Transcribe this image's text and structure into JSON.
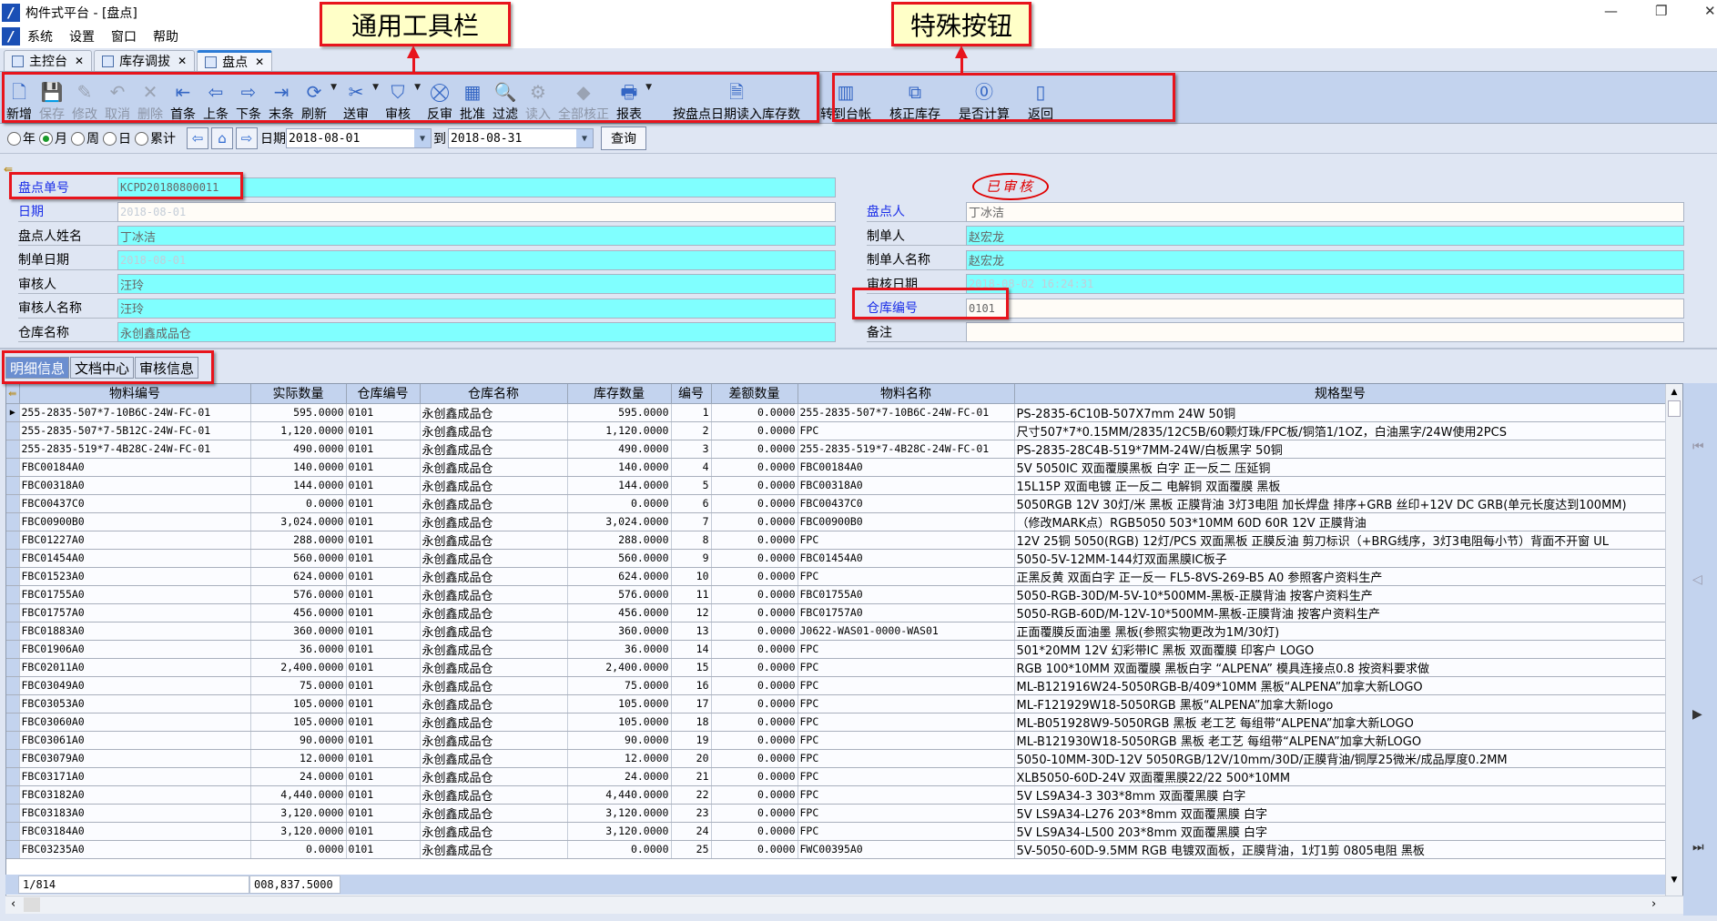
{
  "window": {
    "title": "构件式平台 - [盘点]",
    "minimize": "—",
    "restore": "❐",
    "close": "✕"
  },
  "menu": [
    "系统",
    "设置",
    "窗口",
    "帮助"
  ],
  "doc_tabs": [
    {
      "label": "主控台",
      "active": false
    },
    {
      "label": "库存调拔",
      "active": false
    },
    {
      "label": "盘点",
      "active": true
    }
  ],
  "annotations": {
    "general_toolbar": "通用工具栏",
    "special_buttons": "特殊按钮"
  },
  "toolbar": {
    "general": [
      {
        "label": "新增",
        "icon": "new-doc-icon",
        "glyph": "🗋",
        "disabled": false
      },
      {
        "label": "保存",
        "icon": "save-icon",
        "glyph": "💾",
        "disabled": true
      },
      {
        "label": "修改",
        "icon": "edit-icon",
        "glyph": "✎",
        "disabled": true
      },
      {
        "label": "取消",
        "icon": "undo-icon",
        "glyph": "↶",
        "disabled": true
      },
      {
        "label": "删除",
        "icon": "delete-icon",
        "glyph": "✕",
        "disabled": true
      },
      {
        "label": "首条",
        "icon": "first-record-icon",
        "glyph": "⇤",
        "disabled": false
      },
      {
        "label": "上条",
        "icon": "prev-record-icon",
        "glyph": "⇦",
        "disabled": false
      },
      {
        "label": "下条",
        "icon": "next-record-icon",
        "glyph": "⇨",
        "disabled": false
      },
      {
        "label": "末条",
        "icon": "last-record-icon",
        "glyph": "⇥",
        "disabled": false
      },
      {
        "label": "刷新",
        "icon": "refresh-icon",
        "glyph": "⟳",
        "disabled": false,
        "dropdown": true
      },
      {
        "label": "送审",
        "icon": "submit-review-icon",
        "glyph": "✂",
        "disabled": false,
        "dropdown": true
      },
      {
        "label": "审核",
        "icon": "audit-icon",
        "glyph": "⛉",
        "disabled": false,
        "dropdown": true
      },
      {
        "label": "反审",
        "icon": "unaudit-icon",
        "glyph": "⛒",
        "disabled": false
      },
      {
        "label": "批准",
        "icon": "approve-icon",
        "glyph": "▦",
        "disabled": false
      },
      {
        "label": "过滤",
        "icon": "filter-icon",
        "glyph": "🔍",
        "disabled": false
      },
      {
        "label": "读入",
        "icon": "read-in-icon",
        "glyph": "⚙",
        "disabled": true
      },
      {
        "label": "全部核正",
        "icon": "verify-all-icon",
        "glyph": "◆",
        "disabled": true
      },
      {
        "label": "报表",
        "icon": "report-icon",
        "glyph": "🖶",
        "disabled": false,
        "dropdown": true
      }
    ],
    "special": [
      {
        "label": "按盘点日期读入库存数",
        "icon": "read-stock-icon",
        "glyph": "🗎"
      },
      {
        "label": "转到台帐",
        "icon": "ledger-icon",
        "glyph": "▥"
      },
      {
        "label": "核正库存",
        "icon": "verify-stock-icon",
        "glyph": "⧉"
      },
      {
        "label": "是否计算",
        "icon": "calculate-icon",
        "glyph": "⓪"
      }
    ],
    "back": {
      "label": "返回",
      "icon": "back-icon",
      "glyph": "▯"
    }
  },
  "period": {
    "options": [
      {
        "label": "年",
        "selected": false
      },
      {
        "label": "月",
        "selected": true
      },
      {
        "label": "周",
        "selected": false
      },
      {
        "label": "日",
        "selected": false
      },
      {
        "label": "累计",
        "selected": false
      }
    ],
    "date_label": "日期",
    "date_from": "2018-08-01",
    "to_label": "到",
    "date_to": "2018-08-31",
    "query": "查询"
  },
  "form": {
    "stamp": "已审核",
    "left": [
      {
        "label": "盘点单号",
        "value": "KCPD20180800011",
        "blue": true,
        "style": "cyan mono"
      },
      {
        "label": "日期",
        "value": "2018-08-01",
        "blue": true,
        "style": "white faint mono"
      },
      {
        "label": "盘点人姓名",
        "value": "丁冰洁",
        "blue": false,
        "style": "cyan"
      },
      {
        "label": "制单日期",
        "value": "2018-08-01",
        "blue": false,
        "style": "cyan faint mono"
      },
      {
        "label": "审核人",
        "value": "汪玲",
        "blue": false,
        "style": "cyan"
      },
      {
        "label": "审核人名称",
        "value": "汪玲",
        "blue": false,
        "style": "cyan"
      },
      {
        "label": "仓库名称",
        "value": "永创鑫成品仓",
        "blue": false,
        "style": "cyan"
      }
    ],
    "right": [
      {
        "label": "盘点人",
        "value": "丁冰洁",
        "blue": true,
        "style": "white"
      },
      {
        "label": "制单人",
        "value": "赵宏龙",
        "blue": false,
        "style": "cyan"
      },
      {
        "label": "制单人名称",
        "value": "赵宏龙",
        "blue": false,
        "style": "cyan"
      },
      {
        "label": "审核日期",
        "value": "2018-08-02 16:24:31",
        "blue": false,
        "style": "cyan faint mono"
      },
      {
        "label": "仓库编号",
        "value": "0101",
        "blue": true,
        "style": "white mono"
      },
      {
        "label": "备注",
        "value": "",
        "blue": false,
        "style": "white"
      }
    ]
  },
  "detail_tabs": [
    {
      "label": "明细信息",
      "active": true
    },
    {
      "label": "文档中心",
      "active": false
    },
    {
      "label": "审核信息",
      "active": false
    }
  ],
  "grid": {
    "columns": [
      "物料编号",
      "实际数量",
      "仓库编号",
      "仓库名称",
      "库存数量",
      "编号",
      "差额数量",
      "物料名称",
      "规格型号"
    ],
    "rows": [
      [
        "255-2835-507*7-10B6C-24W-FC-01",
        "595.0000",
        "0101",
        "永创鑫成品仓",
        "595.0000",
        "1",
        "0.0000",
        "255-2835-507*7-10B6C-24W-FC-01",
        "PS-2835-6C10B-507X7mm 24W 50铜"
      ],
      [
        "255-2835-507*7-5B12C-24W-FC-01",
        "1,120.0000",
        "0101",
        "永创鑫成品仓",
        "1,120.0000",
        "2",
        "0.0000",
        "FPC",
        "尺寸507*7*0.15MM/2835/12C5B/60颗灯珠/FPC板/铜箔1/1OZ，白油黑字/24W使用2PCS"
      ],
      [
        "255-2835-519*7-4B28C-24W-FC-01",
        "490.0000",
        "0101",
        "永创鑫成品仓",
        "490.0000",
        "3",
        "0.0000",
        "255-2835-519*7-4B28C-24W-FC-01",
        "PS-2835-28C4B-519*7MM-24W/白板黑字 50铜"
      ],
      [
        "FBC00184A0",
        "140.0000",
        "0101",
        "永创鑫成品仓",
        "140.0000",
        "4",
        "0.0000",
        "FBC00184A0",
        "5V 5050IC 双面覆膜黑板 白字 正一反二 压延铜"
      ],
      [
        "FBC00318A0",
        "144.0000",
        "0101",
        "永创鑫成品仓",
        "144.0000",
        "5",
        "0.0000",
        "FBC00318A0",
        "15L15P 双面电镀 正一反二 电解铜  双面覆膜 黑板"
      ],
      [
        "FBC00437C0",
        "0.0000",
        "0101",
        "永创鑫成品仓",
        "0.0000",
        "6",
        "0.0000",
        "FBC00437C0",
        "5050RGB 12V 30灯/米 黑板 正膜背油 3灯3电阻 加长焊盘 排序+GRB 丝印+12V DC GRB(单元长度达到100MM)"
      ],
      [
        "FBC00900B0",
        "3,024.0000",
        "0101",
        "永创鑫成品仓",
        "3,024.0000",
        "7",
        "0.0000",
        "FBC00900B0",
        "（修改MARK点）RGB5050 503*10MM 60D 60R 12V 正膜背油"
      ],
      [
        "FBC01227A0",
        "288.0000",
        "0101",
        "永创鑫成品仓",
        "288.0000",
        "8",
        "0.0000",
        "FPC",
        "12V 25铜 5050(RGB) 12灯/PCS 双面黑板 正膜反油 剪刀标识（+BRG线序，3灯3电阻每小节）背面不开窗 UL"
      ],
      [
        "FBC01454A0",
        "560.0000",
        "0101",
        "永创鑫成品仓",
        "560.0000",
        "9",
        "0.0000",
        "FBC01454A0",
        "5050-5V-12MM-144灯双面黑膜IC板子"
      ],
      [
        "FBC01523A0",
        "624.0000",
        "0101",
        "永创鑫成品仓",
        "624.0000",
        "10",
        "0.0000",
        "FPC",
        "正黑反黄 双面白字 正一反一 FL5-8VS-269-B5 A0 参照客户资料生产"
      ],
      [
        "FBC01755A0",
        "576.0000",
        "0101",
        "永创鑫成品仓",
        "576.0000",
        "11",
        "0.0000",
        "FBC01755A0",
        "5050-RGB-30D/M-5V-10*500MM-黑板-正膜背油 按客户资料生产"
      ],
      [
        "FBC01757A0",
        "456.0000",
        "0101",
        "永创鑫成品仓",
        "456.0000",
        "12",
        "0.0000",
        "FBC01757A0",
        "5050-RGB-60D/M-12V-10*500MM-黑板-正膜背油 按客户资料生产"
      ],
      [
        "FBC01883A0",
        "360.0000",
        "0101",
        "永创鑫成品仓",
        "360.0000",
        "13",
        "0.0000",
        "J0622-WAS01-0000-WAS01",
        "正面覆膜反面油墨 黑板(参照实物更改为1M/30灯)"
      ],
      [
        "FBC01906A0",
        "36.0000",
        "0101",
        "永创鑫成品仓",
        "36.0000",
        "14",
        "0.0000",
        "FPC",
        "501*20MM 12V 幻彩带IC 黑板 双面覆膜 印客户 LOGO"
      ],
      [
        "FBC02011A0",
        "2,400.0000",
        "0101",
        "永创鑫成品仓",
        "2,400.0000",
        "15",
        "0.0000",
        "FPC",
        "RGB 100*10MM 双面覆膜 黑板白字 “ALPENA” 模具连接点0.8 按资料要求做"
      ],
      [
        "FBC03049A0",
        "75.0000",
        "0101",
        "永创鑫成品仓",
        "75.0000",
        "16",
        "0.0000",
        "FPC",
        "ML-B121916W24-5050RGB-B/409*10MM 黑板“ALPENA”加拿大新LOGO"
      ],
      [
        "FBC03053A0",
        "105.0000",
        "0101",
        "永创鑫成品仓",
        "105.0000",
        "17",
        "0.0000",
        "FPC",
        "ML-F121929W18-5050RGB 黑板“ALPENA”加拿大新logo"
      ],
      [
        "FBC03060A0",
        "105.0000",
        "0101",
        "永创鑫成品仓",
        "105.0000",
        "18",
        "0.0000",
        "FPC",
        "ML-B051928W9-5050RGB 黑板 老工艺 每组带“ALPENA”加拿大新LOGO"
      ],
      [
        "FBC03061A0",
        "90.0000",
        "0101",
        "永创鑫成品仓",
        "90.0000",
        "19",
        "0.0000",
        "FPC",
        "ML-B121930W18-5050RGB 黑板 老工艺 每组带“ALPENA”加拿大新LOGO"
      ],
      [
        "FBC03079A0",
        "12.0000",
        "0101",
        "永创鑫成品仓",
        "12.0000",
        "20",
        "0.0000",
        "FPC",
        "5050-10MM-30D-12V 5050RGB/12V/10mm/30D/正膜背油/铜厚25微米/成品厚度0.2MM"
      ],
      [
        "FBC03171A0",
        "24.0000",
        "0101",
        "永创鑫成品仓",
        "24.0000",
        "21",
        "0.0000",
        "FPC",
        "XLB5050-60D-24V  双面覆黑膜22/22  500*10MM"
      ],
      [
        "FBC03182A0",
        "4,440.0000",
        "0101",
        "永创鑫成品仓",
        "4,440.0000",
        "22",
        "0.0000",
        "FPC",
        "5V LS9A34-3 303*8mm 双面覆黑膜 白字"
      ],
      [
        "FBC03183A0",
        "3,120.0000",
        "0101",
        "永创鑫成品仓",
        "3,120.0000",
        "23",
        "0.0000",
        "FPC",
        "5V LS9A34-L276 203*8mm 双面覆黑膜 白字"
      ],
      [
        "FBC03184A0",
        "3,120.0000",
        "0101",
        "永创鑫成品仓",
        "3,120.0000",
        "24",
        "0.0000",
        "FPC",
        "5V LS9A34-L500 203*8mm 双面覆黑膜 白字"
      ],
      [
        "FBC03235A0",
        "0.0000",
        "0101",
        "永创鑫成品仓",
        "0.0000",
        "25",
        "0.0000",
        "FWC00395A0",
        "5V-5050-60D-9.5MM RGB 电镀双面板，正膜背油，1灯1剪 0805电阻 黑板"
      ]
    ],
    "footer": {
      "record_position": "1/814",
      "total_quantity": "008,837.5000"
    }
  },
  "colors": {
    "accent_red": "#e8141c",
    "field_cyan": "#80ffff",
    "toolbar_blue": "#c3d3ee",
    "link_blue": "#1a2ee8"
  }
}
